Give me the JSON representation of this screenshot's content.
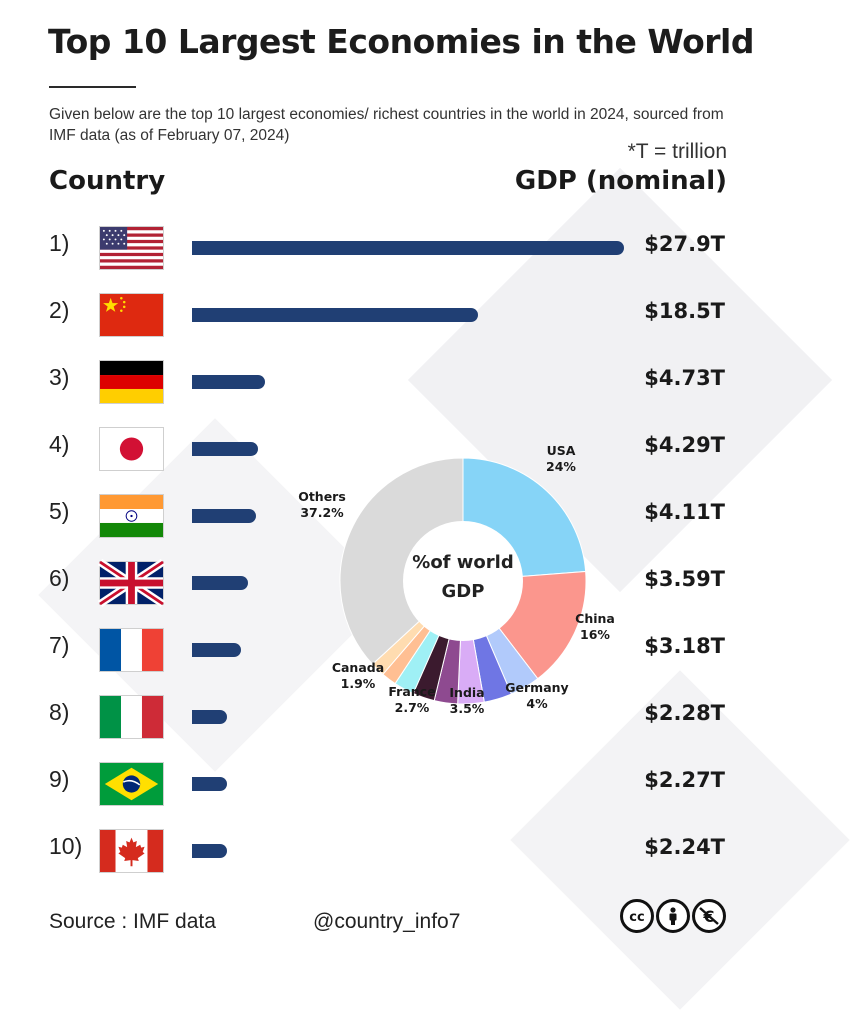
{
  "title": "Top 10 Largest Economies in the World",
  "subtitle": "Given below are the top 10 largest economies/ richest countries in the world in 2024, sourced from IMF data (as of February 07, 2024)",
  "unit_note": "*T = trillion",
  "header": {
    "country": "Country",
    "gdp": "GDP (nominal)"
  },
  "bar_color": "#203f74",
  "rows": [
    {
      "rank": "1)",
      "flag": "usa-flag-icon",
      "value": 27.9,
      "label": "$27.9T"
    },
    {
      "rank": "2)",
      "flag": "china-flag-icon",
      "value": 18.5,
      "label": "$18.5T"
    },
    {
      "rank": "3)",
      "flag": "germany-flag-icon",
      "value": 4.73,
      "label": "$4.73T"
    },
    {
      "rank": "4)",
      "flag": "japan-flag-icon",
      "value": 4.29,
      "label": "$4.29T"
    },
    {
      "rank": "5)",
      "flag": "india-flag-icon",
      "value": 4.11,
      "label": "$4.11T"
    },
    {
      "rank": "6)",
      "flag": "uk-flag-icon",
      "value": 3.59,
      "label": "$3.59T"
    },
    {
      "rank": "7)",
      "flag": "france-flag-icon",
      "value": 3.18,
      "label": "$3.18T"
    },
    {
      "rank": "8)",
      "flag": "italy-flag-icon",
      "value": 2.28,
      "label": "$2.28T"
    },
    {
      "rank": "9)",
      "flag": "brazil-flag-icon",
      "value": 2.27,
      "label": "$2.27T"
    },
    {
      "rank": "10)",
      "flag": "canada-flag-icon",
      "value": 2.24,
      "label": "$2.24T"
    }
  ],
  "chart_data": [
    {
      "type": "bar",
      "orientation": "horizontal",
      "ylabel": "Country",
      "xlabel": "GDP (nominal)",
      "categories": [
        "1)",
        "2)",
        "3)",
        "4)",
        "5)",
        "6)",
        "7)",
        "8)",
        "9)",
        "10)"
      ],
      "values": [
        27.9,
        18.5,
        4.73,
        4.29,
        4.11,
        3.59,
        3.18,
        2.28,
        2.27,
        2.24
      ],
      "data_labels": [
        "$27.9T",
        "$18.5T",
        "$4.73T",
        "$4.29T",
        "$4.11T",
        "$3.59T",
        "$3.18T",
        "$2.28T",
        "$2.27T",
        "$2.24T"
      ],
      "grid": false,
      "legend": "none"
    },
    {
      "type": "pie",
      "donut": true,
      "center_label_line1": "%of world",
      "center_label_line2": "GDP",
      "slices": [
        {
          "name": "USA",
          "value": 24,
          "label": "24%",
          "color": "#86d4f7",
          "labelled": true
        },
        {
          "name": "China",
          "value": 16,
          "label": "16%",
          "color": "#fb968d",
          "labelled": true
        },
        {
          "name": "Germany",
          "value": 4,
          "label": "4%",
          "color": "#b1cafb",
          "labelled": true
        },
        {
          "name": "",
          "value": 3.7,
          "color": "#6f76e4",
          "labelled": false
        },
        {
          "name": "India",
          "value": 3.5,
          "label": "3.5%",
          "color": "#d9acf6",
          "labelled": true
        },
        {
          "name": "",
          "value": 3.1,
          "color": "#8e4a90",
          "labelled": false
        },
        {
          "name": "",
          "value": 2.9,
          "color": "#3b1a2e",
          "labelled": false
        },
        {
          "name": "France",
          "value": 2.7,
          "label": "2.7%",
          "color": "#9ff0f5",
          "labelled": true
        },
        {
          "name": "",
          "value": 2.0,
          "color": "#ffbf93",
          "labelled": false
        },
        {
          "name": "Canada",
          "value": 1.9,
          "label": "1.9%",
          "color": "#ffdcb0",
          "labelled": true
        },
        {
          "name": "Others",
          "value": 37.2,
          "label": "37.2%",
          "color": "#dadada",
          "labelled": true
        }
      ]
    }
  ],
  "footer": {
    "source": "Source : IMF data",
    "handle": "@country_info7",
    "license_icons": [
      "creative-commons-icon",
      "attribution-icon",
      "non-commercial-icon"
    ]
  }
}
